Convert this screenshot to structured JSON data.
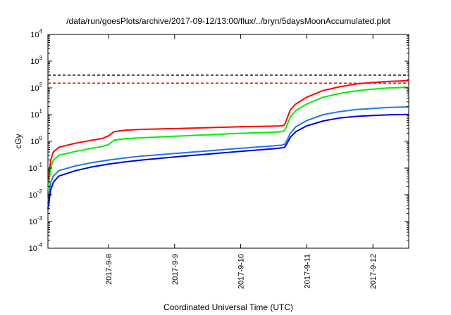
{
  "chart_data": {
    "type": "line",
    "title": "/data/run/goesPlots/archive/2017-09-12/13:00/flux/../bryn/5daysMoonAccumulated.plot",
    "xlabel": "Coordinated Universal Time (UTC)",
    "ylabel": "cGy",
    "xlim": [
      "2017-09-07 02:00",
      "2017-09-12 13:00"
    ],
    "ylim": [
      0.0001,
      10000
    ],
    "yscale": "log",
    "grid": false,
    "legend": "none",
    "x_ticks": [
      "2017-9-8",
      "2017-9-9",
      "2017-9-10",
      "2017-9-11",
      "2017-9-12"
    ],
    "y_ticks": [
      {
        "value": 0.0001,
        "base": "10",
        "exp": "-4"
      },
      {
        "value": 0.001,
        "base": "10",
        "exp": "-3"
      },
      {
        "value": 0.01,
        "base": "10",
        "exp": "-2"
      },
      {
        "value": 0.1,
        "base": "10",
        "exp": "-1"
      },
      {
        "value": 1,
        "base": "10",
        "exp": "0"
      },
      {
        "value": 10,
        "base": "10",
        "exp": "1"
      },
      {
        "value": 100,
        "base": "10",
        "exp": "2"
      },
      {
        "value": 1000,
        "base": "10",
        "exp": "3"
      },
      {
        "value": 10000,
        "base": "10",
        "exp": "4"
      }
    ],
    "reference_lines": [
      {
        "y": 300,
        "color": "#000000",
        "style": "dashed"
      },
      {
        "y": 150,
        "color": "#ff0000",
        "style": "dashed"
      }
    ],
    "series": [
      {
        "color": "#ff0000",
        "points": [
          [
            "2017-09-07 02:00",
            0.02
          ],
          [
            "2017-09-07 03:00",
            0.2
          ],
          [
            "2017-09-07 04:00",
            0.4
          ],
          [
            "2017-09-07 06:00",
            0.6
          ],
          [
            "2017-09-07 12:00",
            0.85
          ],
          [
            "2017-09-07 18:00",
            1.1
          ],
          [
            "2017-09-07 22:00",
            1.3
          ],
          [
            "2017-09-08 00:00",
            1.6
          ],
          [
            "2017-09-08 02:00",
            2.3
          ],
          [
            "2017-09-08 06:00",
            2.6
          ],
          [
            "2017-09-08 12:00",
            2.8
          ],
          [
            "2017-09-09 00:00",
            3.0
          ],
          [
            "2017-09-10 00:00",
            3.5
          ],
          [
            "2017-09-10 12:00",
            3.7
          ],
          [
            "2017-09-10 15:00",
            3.8
          ],
          [
            "2017-09-10 16:00",
            4.2
          ],
          [
            "2017-09-10 17:00",
            8
          ],
          [
            "2017-09-10 18:00",
            15
          ],
          [
            "2017-09-10 20:00",
            25
          ],
          [
            "2017-09-11 00:00",
            45
          ],
          [
            "2017-09-11 06:00",
            80
          ],
          [
            "2017-09-11 12:00",
            110
          ],
          [
            "2017-09-11 18:00",
            140
          ],
          [
            "2017-09-12 00:00",
            160
          ],
          [
            "2017-09-12 06:00",
            175
          ],
          [
            "2017-09-12 13:00",
            185
          ]
        ]
      },
      {
        "color": "#00ee00",
        "points": [
          [
            "2017-09-07 02:00",
            0.015
          ],
          [
            "2017-09-07 03:00",
            0.1
          ],
          [
            "2017-09-07 04:00",
            0.2
          ],
          [
            "2017-09-07 06:00",
            0.3
          ],
          [
            "2017-09-07 12:00",
            0.42
          ],
          [
            "2017-09-07 18:00",
            0.55
          ],
          [
            "2017-09-07 22:00",
            0.65
          ],
          [
            "2017-09-08 00:00",
            0.75
          ],
          [
            "2017-09-08 02:00",
            1.1
          ],
          [
            "2017-09-08 06:00",
            1.25
          ],
          [
            "2017-09-08 12:00",
            1.35
          ],
          [
            "2017-09-09 00:00",
            1.55
          ],
          [
            "2017-09-10 00:00",
            2.0
          ],
          [
            "2017-09-10 12:00",
            2.2
          ],
          [
            "2017-09-10 15:00",
            2.3
          ],
          [
            "2017-09-10 16:00",
            2.6
          ],
          [
            "2017-09-10 17:00",
            4.5
          ],
          [
            "2017-09-10 18:00",
            8
          ],
          [
            "2017-09-10 20:00",
            14
          ],
          [
            "2017-09-11 00:00",
            25
          ],
          [
            "2017-09-11 06:00",
            45
          ],
          [
            "2017-09-11 12:00",
            62
          ],
          [
            "2017-09-11 18:00",
            78
          ],
          [
            "2017-09-12 00:00",
            90
          ],
          [
            "2017-09-12 06:00",
            100
          ],
          [
            "2017-09-12 13:00",
            105
          ]
        ]
      },
      {
        "color": "#1e78e6",
        "points": [
          [
            "2017-09-07 02:00",
            0.005
          ],
          [
            "2017-09-07 03:00",
            0.03
          ],
          [
            "2017-09-07 04:00",
            0.05
          ],
          [
            "2017-09-07 06:00",
            0.08
          ],
          [
            "2017-09-07 12:00",
            0.12
          ],
          [
            "2017-09-07 18:00",
            0.16
          ],
          [
            "2017-09-08 00:00",
            0.2
          ],
          [
            "2017-09-08 06:00",
            0.24
          ],
          [
            "2017-09-08 12:00",
            0.28
          ],
          [
            "2017-09-09 00:00",
            0.35
          ],
          [
            "2017-09-10 00:00",
            0.55
          ],
          [
            "2017-09-10 12:00",
            0.68
          ],
          [
            "2017-09-10 15:00",
            0.72
          ],
          [
            "2017-09-10 16:00",
            0.78
          ],
          [
            "2017-09-10 17:00",
            1.2
          ],
          [
            "2017-09-10 18:00",
            2.0
          ],
          [
            "2017-09-10 20:00",
            3.5
          ],
          [
            "2017-09-11 00:00",
            6
          ],
          [
            "2017-09-11 06:00",
            10
          ],
          [
            "2017-09-11 12:00",
            13
          ],
          [
            "2017-09-11 18:00",
            15.5
          ],
          [
            "2017-09-12 00:00",
            17
          ],
          [
            "2017-09-12 06:00",
            18.5
          ],
          [
            "2017-09-12 13:00",
            19.5
          ]
        ]
      },
      {
        "color": "#0000dd",
        "points": [
          [
            "2017-09-07 02:00",
            0.003
          ],
          [
            "2017-09-07 03:00",
            0.015
          ],
          [
            "2017-09-07 04:00",
            0.03
          ],
          [
            "2017-09-07 06:00",
            0.05
          ],
          [
            "2017-09-07 12:00",
            0.08
          ],
          [
            "2017-09-07 18:00",
            0.11
          ],
          [
            "2017-09-08 00:00",
            0.14
          ],
          [
            "2017-09-08 06:00",
            0.17
          ],
          [
            "2017-09-08 12:00",
            0.2
          ],
          [
            "2017-09-09 00:00",
            0.26
          ],
          [
            "2017-09-10 00:00",
            0.42
          ],
          [
            "2017-09-10 12:00",
            0.53
          ],
          [
            "2017-09-10 15:00",
            0.57
          ],
          [
            "2017-09-10 16:00",
            0.6
          ],
          [
            "2017-09-10 17:00",
            0.9
          ],
          [
            "2017-09-10 18:00",
            1.4
          ],
          [
            "2017-09-10 20:00",
            2.3
          ],
          [
            "2017-09-11 00:00",
            3.8
          ],
          [
            "2017-09-11 06:00",
            5.8
          ],
          [
            "2017-09-11 12:00",
            7.5
          ],
          [
            "2017-09-11 18:00",
            8.6
          ],
          [
            "2017-09-12 00:00",
            9.3
          ],
          [
            "2017-09-12 06:00",
            9.8
          ],
          [
            "2017-09-12 13:00",
            10.2
          ]
        ]
      }
    ]
  }
}
